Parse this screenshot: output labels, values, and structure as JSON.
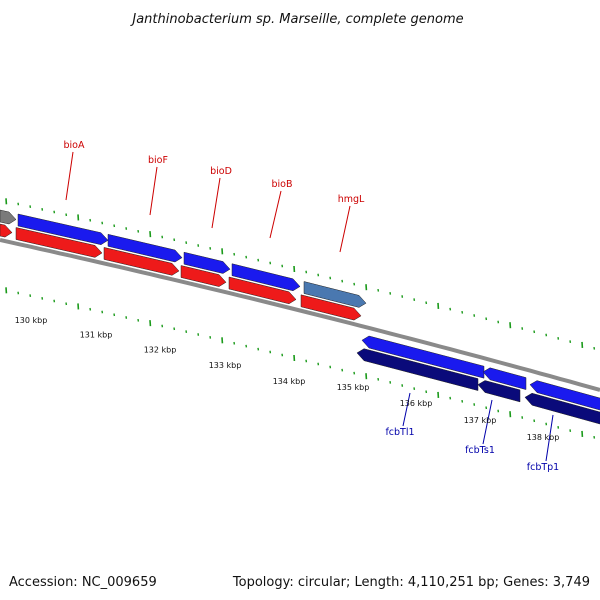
{
  "title": "Janthinobacterium sp. Marseille, complete genome",
  "footer": {
    "accession": "Accession: NC_009659",
    "summary": "Topology: circular; Length: 4,110,251 bp; Genes: 3,749"
  },
  "colors": {
    "forward_upper": "#1a1aee",
    "forward_lower": "#ee1a1a",
    "forward_other": "#4a78b0",
    "reverse_upper": "#1a1aee",
    "reverse_lower": "#0a0a7a",
    "backbone": "#8a8a8a",
    "tick_marks": "#1a9a1a",
    "forward_label": "#cc0000",
    "reverse_label": "#0000aa"
  },
  "scale": {
    "unit": "kbp",
    "labels": [
      "130 kbp",
      "131 kbp",
      "132 kbp",
      "133 kbp",
      "134 kbp",
      "135 kbp",
      "136 kbp",
      "137 kbp",
      "138 kbp"
    ]
  },
  "genes": {
    "forward_labeled": [
      {
        "name": "bioA"
      },
      {
        "name": "bioF"
      },
      {
        "name": "bioD"
      },
      {
        "name": "bioB"
      },
      {
        "name": "hmgL"
      }
    ],
    "reverse_labeled": [
      {
        "name": "fcbTl1"
      },
      {
        "name": "fcbTs1"
      },
      {
        "name": "fcbTp1"
      }
    ]
  }
}
